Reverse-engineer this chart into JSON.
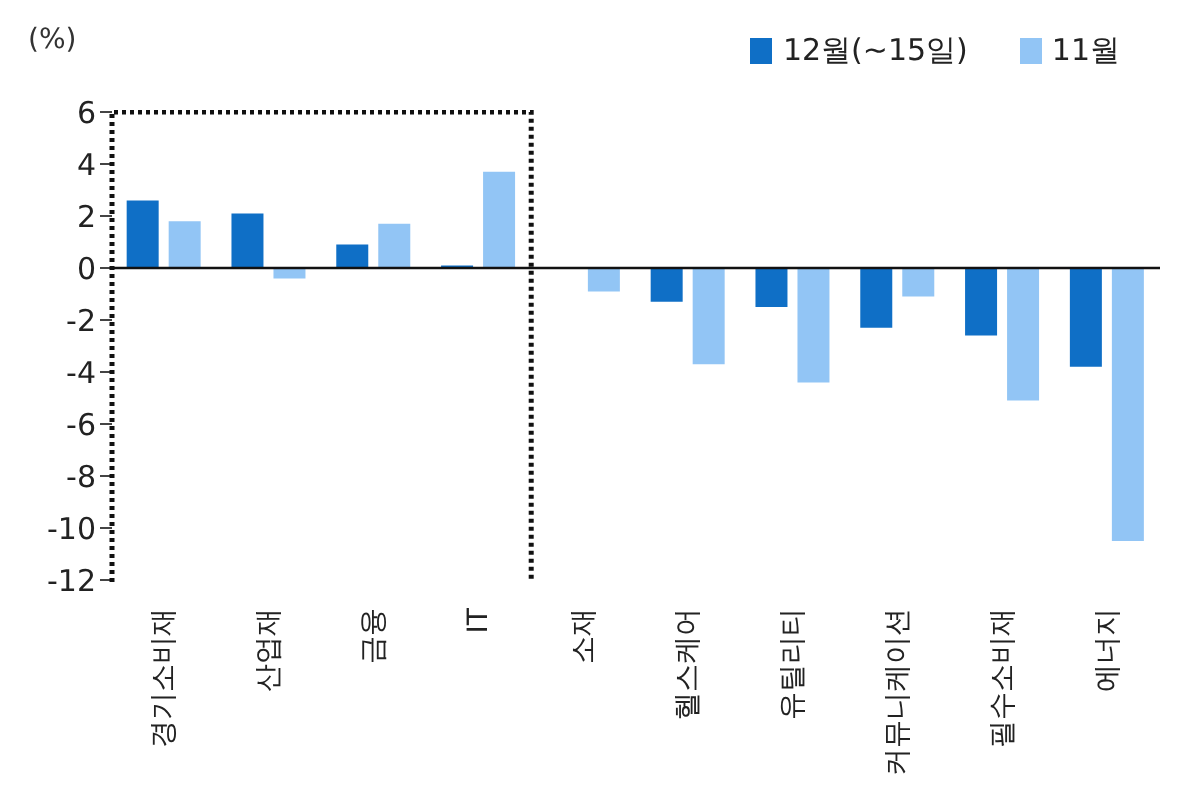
{
  "chart_data": {
    "type": "bar",
    "ylabel": "(%)",
    "categories": [
      "경기소비재",
      "산업재",
      "금융",
      "IT",
      "소재",
      "헬스케어",
      "유틸리티",
      "커뮤니케이션",
      "필수소비재",
      "에너지"
    ],
    "series": [
      {
        "name": "12월(~15일)",
        "color": "#0f6fc6",
        "values": [
          2.6,
          2.1,
          0.9,
          0.1,
          0,
          -1.3,
          -1.5,
          -2.3,
          -2.6,
          -3.8
        ]
      },
      {
        "name": "11월",
        "color": "#92c5f5",
        "values": [
          1.8,
          -0.4,
          1.7,
          3.7,
          -0.9,
          -3.7,
          -4.4,
          -1.1,
          -5.1,
          -10.5
        ]
      }
    ],
    "ylim": [
      -12,
      6
    ],
    "yticks": [
      -12,
      -10,
      -8,
      -6,
      -4,
      -2,
      0,
      2,
      4,
      6
    ],
    "legend": "top right"
  }
}
